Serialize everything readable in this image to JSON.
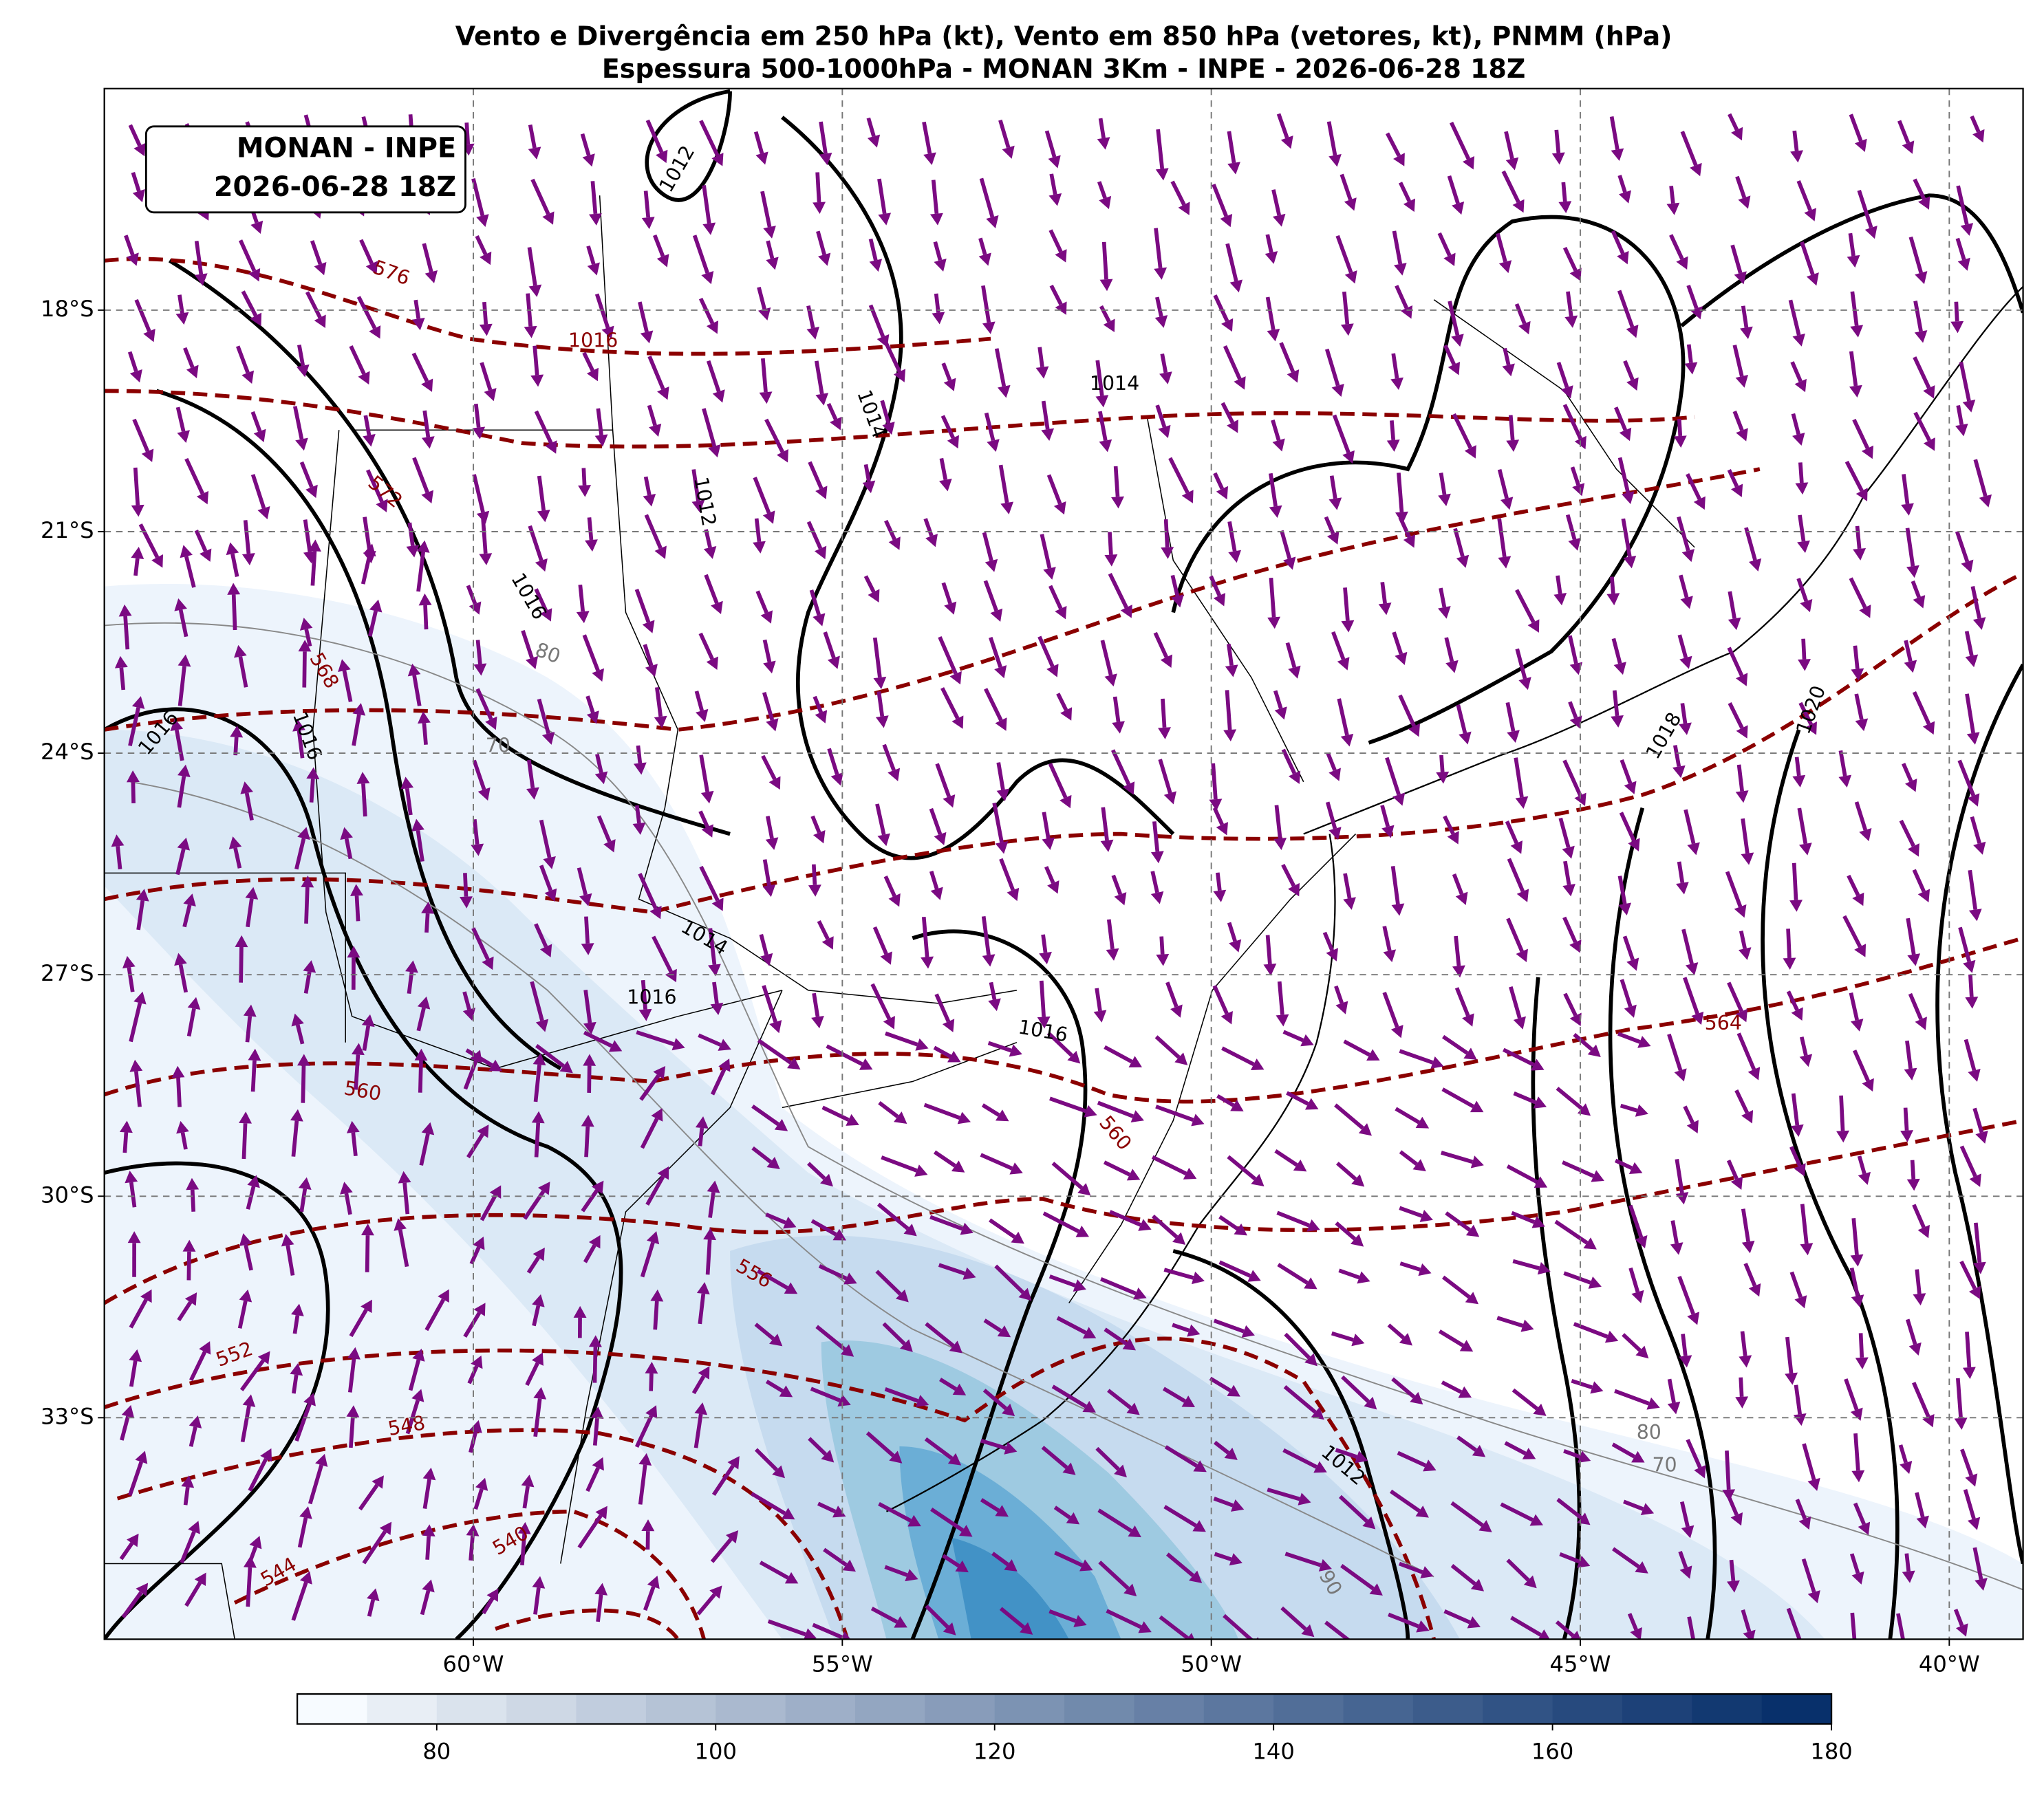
{
  "map": {
    "title": [
      "Vento e Divergência em 250 hPa (kt), Vento em 850 hPa (vetores, kt), PNMM (hPa)",
      "Espessura 500-1000hPa - MONAN 3Km - INPE - 2026-06-28 18Z"
    ],
    "annotation": [
      "MONAN - INPE",
      "2026-06-28 18Z"
    ],
    "xlim": [
      -65,
      -39
    ],
    "ylim": [
      -36,
      -15
    ],
    "xticks": [
      {
        "value": -60,
        "label": "60°W"
      },
      {
        "value": -55,
        "label": "55°W"
      },
      {
        "value": -50,
        "label": "50°W"
      },
      {
        "value": -45,
        "label": "45°W"
      },
      {
        "value": -40,
        "label": "40°W"
      }
    ],
    "yticks": [
      {
        "value": -18,
        "label": "18°S"
      },
      {
        "value": -21,
        "label": "21°S"
      },
      {
        "value": -24,
        "label": "24°S"
      },
      {
        "value": -27,
        "label": "27°S"
      },
      {
        "value": -30,
        "label": "30°S"
      },
      {
        "value": -33,
        "label": "33°S"
      }
    ],
    "colorbar": {
      "lim": [
        70,
        180
      ],
      "ticks": [
        80,
        100,
        120,
        140,
        160,
        180
      ]
    },
    "contour_labels": [
      "576",
      "1016",
      "1014",
      "1014",
      "1012",
      "1012",
      "572",
      "1016",
      "568",
      "1016",
      "1016",
      "80",
      "70",
      "1014",
      "1016",
      "1016",
      "564",
      "560",
      "560",
      "556",
      "552",
      "548",
      "544",
      "540",
      "1018",
      "1020",
      "1012",
      "80",
      "70",
      "90"
    ]
  }
}
